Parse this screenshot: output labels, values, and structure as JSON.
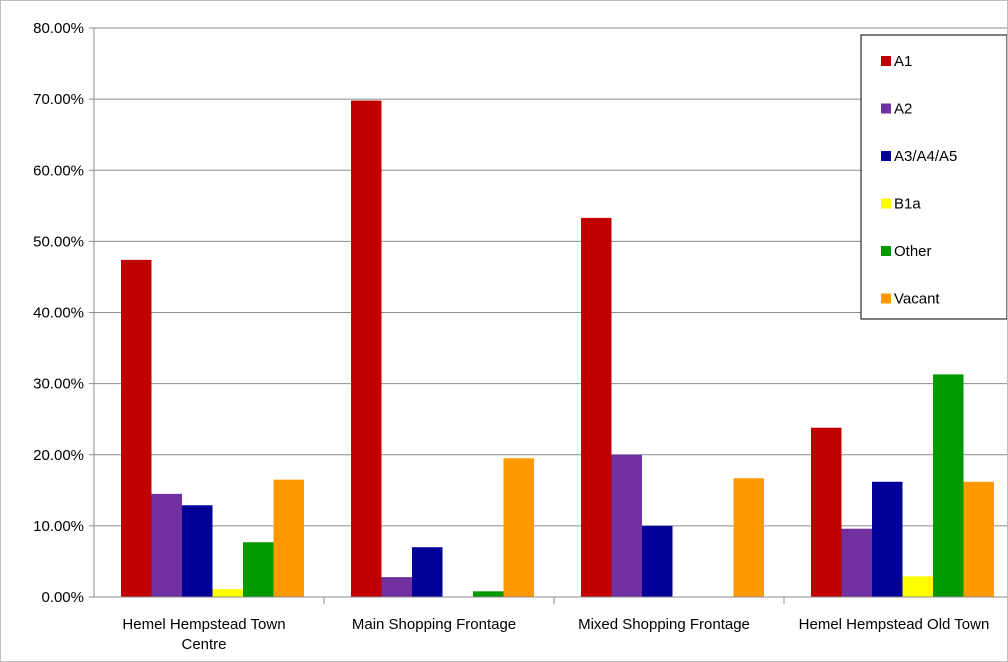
{
  "chart_data": {
    "type": "bar",
    "categories": [
      [
        "Hemel Hempstead Town",
        "Centre"
      ],
      [
        "Main Shopping Frontage"
      ],
      [
        "Mixed Shopping Frontage"
      ],
      [
        "Hemel Hempstead Old Town"
      ]
    ],
    "series": [
      {
        "name": "A1",
        "color": "#c00000",
        "values": [
          47.4,
          69.8,
          53.3,
          23.8
        ]
      },
      {
        "name": "A2",
        "color": "#7030a0",
        "values": [
          14.5,
          2.8,
          20.0,
          9.6
        ]
      },
      {
        "name": "A3/A4/A5",
        "color": "#000099",
        "values": [
          12.9,
          7.0,
          10.0,
          16.2
        ]
      },
      {
        "name": "B1a",
        "color": "#ffff00",
        "values": [
          1.1,
          0.0,
          0.0,
          2.9
        ]
      },
      {
        "name": "Other",
        "color": "#009900",
        "values": [
          7.7,
          0.8,
          0.0,
          31.3
        ]
      },
      {
        "name": "Vacant",
        "color": "#ff9900",
        "values": [
          16.5,
          19.5,
          16.7,
          16.2
        ]
      }
    ],
    "yticks": [
      "0.00%",
      "10.00%",
      "20.00%",
      "30.00%",
      "40.00%",
      "50.00%",
      "60.00%",
      "70.00%",
      "80.00%"
    ],
    "ylim": [
      0,
      80
    ],
    "grid": true,
    "legend": "top-right"
  }
}
